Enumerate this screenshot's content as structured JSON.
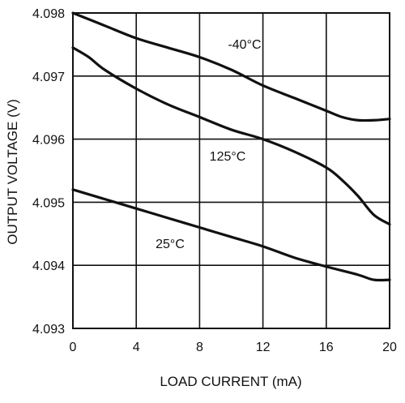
{
  "chart_data": {
    "type": "line",
    "title": "",
    "xlabel": "LOAD CURRENT (mA)",
    "ylabel": "OUTPUT VOLTAGE (V)",
    "xlim": [
      0,
      20
    ],
    "ylim": [
      4.093,
      4.098
    ],
    "xticks": [
      0,
      4,
      8,
      12,
      16,
      20
    ],
    "xtick_labels": [
      "0",
      "4",
      "8",
      "12",
      "16",
      "20"
    ],
    "yticks": [
      4.093,
      4.094,
      4.095,
      4.096,
      4.097,
      4.098
    ],
    "ytick_labels": [
      "4.093",
      "4.094",
      "4.095",
      "4.096",
      "4.097",
      "4.098"
    ],
    "grid": true,
    "legend": "none",
    "series": [
      {
        "name": "-40°C",
        "x": [
          0,
          2,
          4,
          6,
          8,
          10,
          12,
          14,
          16,
          17,
          18,
          19,
          20
        ],
        "y": [
          4.098,
          4.0978,
          4.0976,
          4.09745,
          4.0973,
          4.0971,
          4.09685,
          4.09665,
          4.09645,
          4.09635,
          4.0963,
          4.0963,
          4.09632
        ]
      },
      {
        "name": "125°C",
        "x": [
          0,
          1,
          2,
          4,
          6,
          8,
          10,
          12,
          14,
          16,
          17,
          18,
          19,
          20
        ],
        "y": [
          4.09745,
          4.0973,
          4.0971,
          4.0968,
          4.09655,
          4.09635,
          4.09615,
          4.096,
          4.0958,
          4.09555,
          4.09535,
          4.0951,
          4.0948,
          4.09465
        ]
      },
      {
        "name": "25°C",
        "x": [
          0,
          2,
          4,
          6,
          8,
          10,
          12,
          14,
          16,
          18,
          19,
          20
        ],
        "y": [
          4.0952,
          4.09505,
          4.0949,
          4.09475,
          4.0946,
          4.09445,
          4.0943,
          4.09412,
          4.09398,
          4.09385,
          4.09377,
          4.09377
        ]
      }
    ],
    "annotations": [
      {
        "text": "-40°C",
        "series": 0
      },
      {
        "text": "125°C",
        "series": 1
      },
      {
        "text": "25°C",
        "series": 2
      }
    ]
  }
}
